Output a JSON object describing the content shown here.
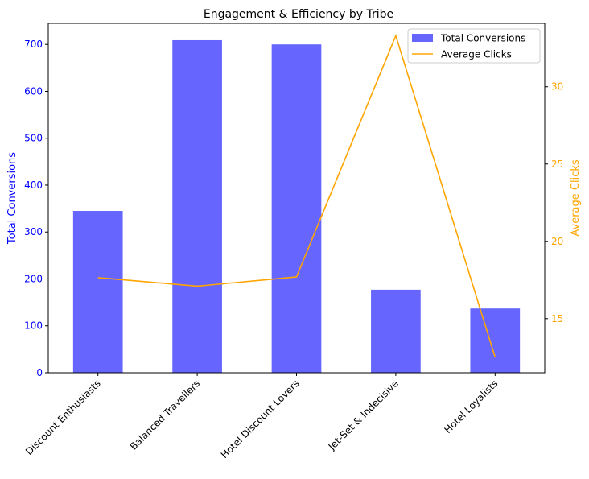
{
  "chart_data": {
    "type": "bar",
    "title": "Engagement & Efficiency by Tribe",
    "categories": [
      "Discount Enthusiasts",
      "Balanced Travellers",
      "Hotel Discount Lovers",
      "Jet-Set & Indecisive",
      "Hotel Loyalists"
    ],
    "y_left": {
      "label": "Total Conversions",
      "color": "#0000ff",
      "ticks": [
        "0",
        "100",
        "200",
        "300",
        "400",
        "500",
        "600",
        "700"
      ],
      "tick_values": [
        0,
        100,
        200,
        300,
        400,
        500,
        600,
        700
      ],
      "ylim": [
        0,
        745
      ]
    },
    "y_right": {
      "label": "Average Clicks",
      "color": "#ffa500",
      "ticks": [
        "15",
        "20",
        "25",
        "30"
      ],
      "tick_values": [
        15,
        20,
        25,
        30
      ],
      "ylim": [
        11.5,
        34.1
      ]
    },
    "series": [
      {
        "name": "Total Conversions",
        "type": "bar",
        "axis": "left",
        "color": "#6666ff",
        "values": [
          345,
          709,
          700,
          177,
          137
        ]
      },
      {
        "name": "Average Clicks",
        "type": "line",
        "axis": "right",
        "color": "#ffa500",
        "values": [
          17.65,
          17.1,
          17.7,
          33.3,
          12.5
        ]
      }
    ],
    "legend": {
      "position": "top-right"
    },
    "grid": false
  }
}
